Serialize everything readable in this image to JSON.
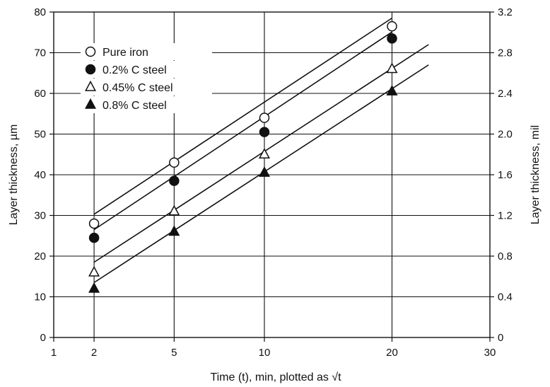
{
  "chart_data": {
    "type": "scatter",
    "title": "",
    "xlabel": "Time (t), min, plotted as √t",
    "ylabel_left": "Layer thickness, µm",
    "ylabel_right": "Layer thickness, mil",
    "x_scale": "sqrt",
    "xlim": [
      1,
      30
    ],
    "x_ticks": [
      1,
      2,
      5,
      10,
      20,
      30
    ],
    "ylim": [
      0,
      80
    ],
    "y_ticks": [
      0,
      10,
      20,
      30,
      40,
      50,
      60,
      70,
      80
    ],
    "y2lim": [
      0,
      3.2
    ],
    "y2_ticks": [
      "0",
      "0.4",
      "0.8",
      "1.2",
      "1.6",
      "2.0",
      "2.4",
      "2.8",
      "3.2"
    ],
    "grid": true,
    "legend_position": "top-left",
    "series": [
      {
        "name": "Pure iron",
        "marker": "open-circle",
        "x": [
          2,
          5,
          10,
          20
        ],
        "y": [
          28,
          43,
          54,
          76.5
        ]
      },
      {
        "name": "0.2% C steel",
        "marker": "filled-circle",
        "x": [
          2,
          5,
          10,
          20
        ],
        "y": [
          24.5,
          38.5,
          50.5,
          73.5
        ]
      },
      {
        "name": "0.45% C steel",
        "marker": "open-triangle",
        "x": [
          2,
          5,
          10,
          20
        ],
        "y": [
          16,
          31,
          45,
          66
        ]
      },
      {
        "name": "0.8% C steel",
        "marker": "filled-triangle",
        "x": [
          2,
          5,
          10,
          20
        ],
        "y": [
          12,
          26,
          40.5,
          60.5
        ]
      }
    ],
    "fit_lines": [
      {
        "x": [
          2,
          20
        ],
        "y": [
          30.3,
          78.5
        ]
      },
      {
        "x": [
          2,
          20
        ],
        "y": [
          26.5,
          75.1
        ]
      },
      {
        "x": [
          2,
          23.5
        ],
        "y": [
          18.5,
          72
        ]
      },
      {
        "x": [
          2,
          23.5
        ],
        "y": [
          13.5,
          67
        ]
      }
    ]
  }
}
